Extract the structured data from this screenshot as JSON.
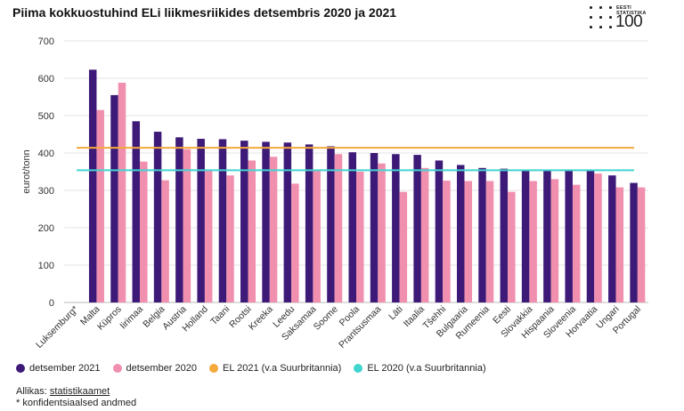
{
  "chart_data": {
    "type": "bar",
    "title": "Piima kokkuostuhind ELi liikmesriikides detsembris 2020 ja 2021",
    "ylabel": "eurot/tonn",
    "xlabel": "",
    "ylim": [
      0,
      700
    ],
    "yticks": [
      0,
      100,
      200,
      300,
      400,
      500,
      600,
      700
    ],
    "categories": [
      "Luksemburg*",
      "Malta",
      "Küpros",
      "Iirimaa",
      "Belgia",
      "Austria",
      "Holland",
      "Taani",
      "Rootsi",
      "Kreeka",
      "Leedu",
      "Saksamaa",
      "Soome",
      "Poola",
      "Prantsusmaa",
      "Läti",
      "Itaalia",
      "Tšehhi",
      "Bulgaaria",
      "Rumeenia",
      "Eesti",
      "Slovakkia",
      "Hispaania",
      "Sloveenia",
      "Horvaatia",
      "Ungari",
      "Portugal"
    ],
    "series": [
      {
        "name": "detsember 2021",
        "color": "#3d1a78",
        "values": [
          null,
          623,
          555,
          485,
          457,
          442,
          438,
          437,
          433,
          430,
          428,
          423,
          418,
          402,
          400,
          397,
          395,
          380,
          368,
          360,
          358,
          355,
          355,
          355,
          355,
          340,
          320
        ]
      },
      {
        "name": "detsember 2020",
        "color": "#f08fae",
        "values": [
          null,
          515,
          588,
          377,
          327,
          410,
          352,
          340,
          380,
          390,
          318,
          352,
          397,
          350,
          372,
          296,
          360,
          326,
          325,
          325,
          296,
          325,
          330,
          315,
          345,
          308,
          308
        ]
      }
    ],
    "reference_lines": [
      {
        "name": "EL 2021 (v.a Suurbritannia)",
        "color": "#f4a93b",
        "value": 414
      },
      {
        "name": "EL 2020 (v.a Suurbritannia)",
        "color": "#42d4cf",
        "value": 354
      }
    ],
    "legend_position": "bottom-left"
  },
  "logo": {
    "line1": "EESTI",
    "line2": "STATISTIKA",
    "line3": "100"
  },
  "source": {
    "prefix": "Allikas: ",
    "link": "statistikaamet",
    "note": "* konfidentsiaalsed andmed"
  }
}
